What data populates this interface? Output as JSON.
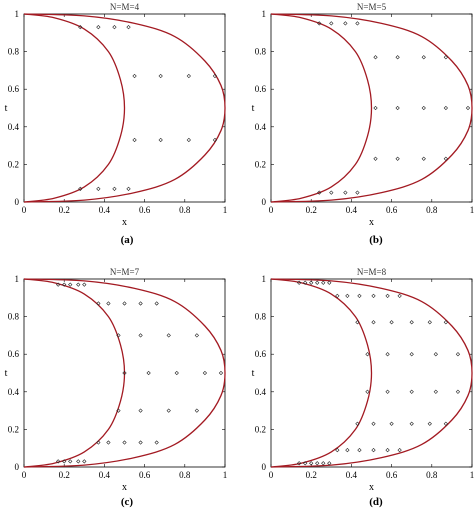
{
  "chart_data": [
    {
      "type": "scatter",
      "panel": "a",
      "title": "N=M=4",
      "caption": "(a)",
      "xlabel": "x",
      "ylabel": "t",
      "xlim": [
        0,
        1
      ],
      "ylim": [
        0,
        1
      ],
      "xticks": [
        "0",
        "0.2",
        "0.4",
        "0.6",
        "0.8",
        "1"
      ],
      "yticks": [
        "0",
        "0.2",
        "0.4",
        "0.6",
        "0.8",
        "1"
      ],
      "curve_color": "#a31a22",
      "curves": [
        {
          "label": "",
          "x": [
            0,
            0.15,
            0.3,
            0.42,
            0.48,
            0.5,
            0.48,
            0.42,
            0.3,
            0.15,
            0
          ],
          "t": [
            0,
            0.02,
            0.08,
            0.2,
            0.35,
            0.5,
            0.65,
            0.8,
            0.92,
            0.98,
            1
          ]
        },
        {
          "label": "",
          "x": [
            0,
            0.3,
            0.55,
            0.75,
            0.9,
            0.98,
            1,
            0.98,
            0.9,
            0.75,
            0.55,
            0.3,
            0
          ],
          "t": [
            0,
            0.01,
            0.05,
            0.12,
            0.25,
            0.38,
            0.5,
            0.62,
            0.75,
            0.88,
            0.95,
            0.99,
            1
          ]
        }
      ],
      "points": [
        [
          0.28,
          0.93
        ],
        [
          0.37,
          0.93
        ],
        [
          0.45,
          0.93
        ],
        [
          0.52,
          0.93
        ],
        [
          0.55,
          0.67
        ],
        [
          0.68,
          0.67
        ],
        [
          0.82,
          0.67
        ],
        [
          0.95,
          0.67
        ],
        [
          0.55,
          0.33
        ],
        [
          0.68,
          0.33
        ],
        [
          0.82,
          0.33
        ],
        [
          0.95,
          0.33
        ],
        [
          0.28,
          0.07
        ],
        [
          0.37,
          0.07
        ],
        [
          0.45,
          0.07
        ],
        [
          0.52,
          0.07
        ]
      ]
    },
    {
      "type": "scatter",
      "panel": "b",
      "title": "N=M=5",
      "caption": "(b)",
      "xlabel": "x",
      "ylabel": "t",
      "xlim": [
        0,
        1
      ],
      "ylim": [
        0,
        1
      ],
      "xticks": [
        "0",
        "0.2",
        "0.4",
        "0.6",
        "0.8",
        "1"
      ],
      "yticks": [
        "0",
        "0.2",
        "0.4",
        "0.6",
        "0.8",
        "1"
      ],
      "curve_color": "#a31a22",
      "curves": [
        {
          "label": "",
          "x": [
            0,
            0.15,
            0.3,
            0.42,
            0.48,
            0.5,
            0.48,
            0.42,
            0.3,
            0.15,
            0
          ],
          "t": [
            0,
            0.02,
            0.08,
            0.2,
            0.35,
            0.5,
            0.65,
            0.8,
            0.92,
            0.98,
            1
          ]
        },
        {
          "label": "",
          "x": [
            0,
            0.3,
            0.55,
            0.75,
            0.9,
            0.98,
            1,
            0.98,
            0.9,
            0.75,
            0.55,
            0.3,
            0
          ],
          "t": [
            0,
            0.01,
            0.05,
            0.12,
            0.25,
            0.38,
            0.5,
            0.62,
            0.75,
            0.88,
            0.95,
            0.99,
            1
          ]
        }
      ],
      "points": [
        [
          0.24,
          0.95
        ],
        [
          0.3,
          0.95
        ],
        [
          0.37,
          0.95
        ],
        [
          0.43,
          0.95
        ],
        [
          0.52,
          0.77
        ],
        [
          0.63,
          0.77
        ],
        [
          0.76,
          0.77
        ],
        [
          0.87,
          0.77
        ],
        [
          0.52,
          0.5
        ],
        [
          0.63,
          0.5
        ],
        [
          0.76,
          0.5
        ],
        [
          0.87,
          0.5
        ],
        [
          0.98,
          0.5
        ],
        [
          0.52,
          0.23
        ],
        [
          0.63,
          0.23
        ],
        [
          0.76,
          0.23
        ],
        [
          0.87,
          0.23
        ],
        [
          0.24,
          0.05
        ],
        [
          0.3,
          0.05
        ],
        [
          0.37,
          0.05
        ],
        [
          0.43,
          0.05
        ]
      ]
    },
    {
      "type": "scatter",
      "panel": "c",
      "title": "N=M=7",
      "caption": "(c)",
      "xlabel": "x",
      "ylabel": "t",
      "xlim": [
        0,
        1
      ],
      "ylim": [
        0,
        1
      ],
      "xticks": [
        "0",
        "0.2",
        "0.4",
        "0.6",
        "0.8",
        "1"
      ],
      "yticks": [
        "0",
        "0.2",
        "0.4",
        "0.6",
        "0.8",
        "1"
      ],
      "curve_color": "#a31a22",
      "curves": [
        {
          "label": "",
          "x": [
            0,
            0.15,
            0.3,
            0.42,
            0.48,
            0.5,
            0.48,
            0.42,
            0.3,
            0.15,
            0
          ],
          "t": [
            0,
            0.02,
            0.08,
            0.2,
            0.35,
            0.5,
            0.65,
            0.8,
            0.92,
            0.98,
            1
          ]
        },
        {
          "label": "",
          "x": [
            0,
            0.3,
            0.55,
            0.75,
            0.9,
            0.98,
            1,
            0.98,
            0.9,
            0.75,
            0.55,
            0.3,
            0
          ],
          "t": [
            0,
            0.01,
            0.05,
            0.12,
            0.25,
            0.38,
            0.5,
            0.62,
            0.75,
            0.88,
            0.95,
            0.99,
            1
          ]
        }
      ],
      "points": [
        [
          0.17,
          0.97
        ],
        [
          0.2,
          0.97
        ],
        [
          0.23,
          0.97
        ],
        [
          0.27,
          0.97
        ],
        [
          0.3,
          0.97
        ],
        [
          0.37,
          0.87
        ],
        [
          0.42,
          0.87
        ],
        [
          0.5,
          0.87
        ],
        [
          0.58,
          0.87
        ],
        [
          0.66,
          0.87
        ],
        [
          0.47,
          0.7
        ],
        [
          0.58,
          0.7
        ],
        [
          0.72,
          0.7
        ],
        [
          0.86,
          0.7
        ],
        [
          0.5,
          0.5
        ],
        [
          0.62,
          0.5
        ],
        [
          0.76,
          0.5
        ],
        [
          0.9,
          0.5
        ],
        [
          0.98,
          0.5
        ],
        [
          0.47,
          0.3
        ],
        [
          0.58,
          0.3
        ],
        [
          0.72,
          0.3
        ],
        [
          0.86,
          0.3
        ],
        [
          0.37,
          0.13
        ],
        [
          0.42,
          0.13
        ],
        [
          0.5,
          0.13
        ],
        [
          0.58,
          0.13
        ],
        [
          0.66,
          0.13
        ],
        [
          0.17,
          0.03
        ],
        [
          0.2,
          0.03
        ],
        [
          0.23,
          0.03
        ],
        [
          0.27,
          0.03
        ],
        [
          0.3,
          0.03
        ]
      ]
    },
    {
      "type": "scatter",
      "panel": "d",
      "title": "N=M=8",
      "caption": "(d)",
      "xlabel": "x",
      "ylabel": "t",
      "xlim": [
        0,
        1
      ],
      "ylim": [
        0,
        1
      ],
      "xticks": [
        "0",
        "0.2",
        "0.4",
        "0.6",
        "0.8",
        "1"
      ],
      "yticks": [
        "0",
        "0.2",
        "0.4",
        "0.6",
        "0.8",
        "1"
      ],
      "curve_color": "#a31a22",
      "curves": [
        {
          "label": "",
          "x": [
            0,
            0.15,
            0.3,
            0.42,
            0.48,
            0.5,
            0.48,
            0.42,
            0.3,
            0.15,
            0
          ],
          "t": [
            0,
            0.02,
            0.08,
            0.2,
            0.35,
            0.5,
            0.65,
            0.8,
            0.92,
            0.98,
            1
          ]
        },
        {
          "label": "",
          "x": [
            0,
            0.3,
            0.55,
            0.75,
            0.9,
            0.98,
            1,
            0.98,
            0.9,
            0.75,
            0.55,
            0.3,
            0
          ],
          "t": [
            0,
            0.01,
            0.05,
            0.12,
            0.25,
            0.38,
            0.5,
            0.62,
            0.75,
            0.88,
            0.95,
            0.99,
            1
          ]
        }
      ],
      "points": [
        [
          0.14,
          0.98
        ],
        [
          0.17,
          0.98
        ],
        [
          0.2,
          0.98
        ],
        [
          0.23,
          0.98
        ],
        [
          0.26,
          0.98
        ],
        [
          0.29,
          0.98
        ],
        [
          0.33,
          0.91
        ],
        [
          0.38,
          0.91
        ],
        [
          0.44,
          0.91
        ],
        [
          0.51,
          0.91
        ],
        [
          0.58,
          0.91
        ],
        [
          0.64,
          0.91
        ],
        [
          0.43,
          0.77
        ],
        [
          0.51,
          0.77
        ],
        [
          0.6,
          0.77
        ],
        [
          0.7,
          0.77
        ],
        [
          0.79,
          0.77
        ],
        [
          0.87,
          0.77
        ],
        [
          0.48,
          0.6
        ],
        [
          0.58,
          0.6
        ],
        [
          0.7,
          0.6
        ],
        [
          0.82,
          0.6
        ],
        [
          0.93,
          0.6
        ],
        [
          0.48,
          0.4
        ],
        [
          0.58,
          0.4
        ],
        [
          0.7,
          0.4
        ],
        [
          0.82,
          0.4
        ],
        [
          0.93,
          0.4
        ],
        [
          0.43,
          0.23
        ],
        [
          0.51,
          0.23
        ],
        [
          0.6,
          0.23
        ],
        [
          0.7,
          0.23
        ],
        [
          0.79,
          0.23
        ],
        [
          0.87,
          0.23
        ],
        [
          0.33,
          0.09
        ],
        [
          0.38,
          0.09
        ],
        [
          0.44,
          0.09
        ],
        [
          0.51,
          0.09
        ],
        [
          0.58,
          0.09
        ],
        [
          0.64,
          0.09
        ],
        [
          0.14,
          0.02
        ],
        [
          0.17,
          0.02
        ],
        [
          0.2,
          0.02
        ],
        [
          0.23,
          0.02
        ],
        [
          0.26,
          0.02
        ],
        [
          0.29,
          0.02
        ]
      ]
    }
  ]
}
